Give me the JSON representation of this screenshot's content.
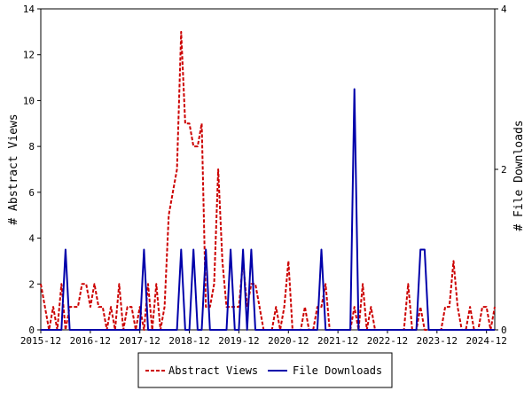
{
  "chart_data": {
    "type": "line",
    "title": "",
    "xlabel": "",
    "ylabel": "# Abstract Views",
    "y2label": "# File Downloads",
    "ylim": [
      0,
      14
    ],
    "y2lim": [
      0,
      4
    ],
    "yticks": [
      0,
      2,
      4,
      6,
      8,
      10,
      12,
      14
    ],
    "y2ticks": [
      0,
      2,
      4
    ],
    "x_range": [
      "2015-12",
      "2025-02"
    ],
    "xticks": [
      "2015-12",
      "2016-12",
      "2017-12",
      "2018-12",
      "2019-12",
      "2020-12",
      "2021-12",
      "2022-12",
      "2023-12",
      "2024-12"
    ],
    "grid": false,
    "legend_position": "bottom",
    "series": [
      {
        "name": "Abstract Views",
        "axis": "left",
        "color": "#cc0000",
        "style": "dashed",
        "x": [
          "2015-12",
          "2016-01",
          "2016-02",
          "2016-03",
          "2016-04",
          "2016-05",
          "2016-06",
          "2016-07",
          "2016-08",
          "2016-09",
          "2016-10",
          "2016-11",
          "2016-12",
          "2017-01",
          "2017-02",
          "2017-03",
          "2017-04",
          "2017-05",
          "2017-06",
          "2017-07",
          "2017-08",
          "2017-09",
          "2017-10",
          "2017-11",
          "2017-12",
          "2018-01",
          "2018-02",
          "2018-03",
          "2018-04",
          "2018-05",
          "2018-06",
          "2018-07",
          "2018-08",
          "2018-09",
          "2018-10",
          "2018-11",
          "2018-12",
          "2019-01",
          "2019-02",
          "2019-03",
          "2019-04",
          "2019-05",
          "2019-06",
          "2019-07",
          "2019-08",
          "2019-09",
          "2019-10",
          "2019-11",
          "2019-12",
          "2020-01",
          "2020-02",
          "2020-03",
          "2020-04",
          "2020-05",
          "2020-06",
          "2020-07",
          "2020-08",
          "2020-09",
          "2020-10",
          "2020-11",
          "2020-12",
          "2021-01",
          "2021-02",
          "2021-03",
          "2021-04",
          "2021-05",
          "2021-06",
          "2021-07",
          "2021-08",
          "2021-09",
          "2021-10",
          "2021-11",
          "2021-12",
          "2022-01",
          "2022-02",
          "2022-03",
          "2022-04",
          "2022-05",
          "2022-06",
          "2022-07",
          "2022-08",
          "2022-09",
          "2022-10",
          "2022-11",
          "2022-12",
          "2023-01",
          "2023-02",
          "2023-03",
          "2023-04",
          "2023-05",
          "2023-06",
          "2023-07",
          "2023-08",
          "2023-09",
          "2023-10",
          "2023-11",
          "2023-12",
          "2024-01",
          "2024-02",
          "2024-03",
          "2024-04",
          "2024-05",
          "2024-06",
          "2024-07",
          "2024-08",
          "2024-09",
          "2024-10",
          "2024-11",
          "2024-12",
          "2025-01",
          "2025-02"
        ],
        "values": [
          2,
          1,
          0,
          1,
          0,
          2,
          0,
          1,
          1,
          1,
          2,
          2,
          1,
          2,
          1,
          1,
          0,
          1,
          0,
          2,
          0,
          1,
          1,
          0,
          1,
          0,
          2,
          0,
          2,
          0,
          1,
          5,
          6,
          7,
          13,
          9,
          9,
          8,
          8,
          9,
          1,
          1,
          2,
          7,
          3,
          1,
          1,
          1,
          1,
          3,
          1,
          2,
          2,
          1,
          0,
          0,
          0,
          1,
          0,
          1,
          3,
          0,
          0,
          0,
          1,
          0,
          0,
          1,
          1,
          2,
          0,
          0,
          0,
          0,
          0,
          0,
          1,
          0,
          2,
          0,
          1,
          0,
          0,
          0,
          0,
          0,
          0,
          0,
          0,
          2,
          0,
          0,
          1,
          0,
          0,
          0,
          0,
          0,
          1,
          1,
          3,
          1,
          0,
          0,
          1,
          0,
          0,
          1,
          1,
          0,
          1
        ]
      },
      {
        "name": "File Downloads",
        "axis": "right",
        "color": "#0000aa",
        "style": "solid",
        "x": [
          "2015-12",
          "2016-01",
          "2016-02",
          "2016-03",
          "2016-04",
          "2016-05",
          "2016-06",
          "2016-07",
          "2016-08",
          "2016-09",
          "2016-10",
          "2016-11",
          "2016-12",
          "2017-01",
          "2017-02",
          "2017-03",
          "2017-04",
          "2017-05",
          "2017-06",
          "2017-07",
          "2017-08",
          "2017-09",
          "2017-10",
          "2017-11",
          "2017-12",
          "2018-01",
          "2018-02",
          "2018-03",
          "2018-04",
          "2018-05",
          "2018-06",
          "2018-07",
          "2018-08",
          "2018-09",
          "2018-10",
          "2018-11",
          "2018-12",
          "2019-01",
          "2019-02",
          "2019-03",
          "2019-04",
          "2019-05",
          "2019-06",
          "2019-07",
          "2019-08",
          "2019-09",
          "2019-10",
          "2019-11",
          "2019-12",
          "2020-01",
          "2020-02",
          "2020-03",
          "2020-04",
          "2020-05",
          "2020-06",
          "2020-07",
          "2020-08",
          "2020-09",
          "2020-10",
          "2020-11",
          "2020-12",
          "2021-01",
          "2021-02",
          "2021-03",
          "2021-04",
          "2021-05",
          "2021-06",
          "2021-07",
          "2021-08",
          "2021-09",
          "2021-10",
          "2021-11",
          "2021-12",
          "2022-01",
          "2022-02",
          "2022-03",
          "2022-04",
          "2022-05",
          "2022-06",
          "2022-07",
          "2022-08",
          "2022-09",
          "2022-10",
          "2022-11",
          "2022-12",
          "2023-01",
          "2023-02",
          "2023-03",
          "2023-04",
          "2023-05",
          "2023-06",
          "2023-07",
          "2023-08",
          "2023-09",
          "2023-10",
          "2023-11",
          "2023-12",
          "2024-01",
          "2024-02",
          "2024-03",
          "2024-04",
          "2024-05",
          "2024-06",
          "2024-07",
          "2024-08",
          "2024-09",
          "2024-10",
          "2024-11",
          "2024-12",
          "2025-01",
          "2025-02"
        ],
        "values": [
          0,
          0,
          0,
          0,
          0,
          0,
          1,
          0,
          0,
          0,
          0,
          0,
          0,
          0,
          0,
          0,
          0,
          0,
          0,
          0,
          0,
          0,
          0,
          0,
          0,
          1,
          0,
          0,
          0,
          0,
          0,
          0,
          0,
          0,
          1,
          0,
          0,
          1,
          0,
          0,
          1,
          0,
          0,
          0,
          0,
          0,
          1,
          0,
          0,
          1,
          0,
          1,
          0,
          0,
          0,
          0,
          0,
          0,
          0,
          0,
          0,
          0,
          0,
          0,
          0,
          0,
          0,
          0,
          1,
          0,
          0,
          0,
          0,
          0,
          0,
          0,
          3,
          0,
          0,
          0,
          0,
          0,
          0,
          0,
          0,
          0,
          0,
          0,
          0,
          0,
          0,
          0,
          1,
          1,
          0,
          0,
          0,
          0,
          0,
          0,
          0,
          0,
          0,
          0,
          0,
          0,
          0,
          0,
          0,
          0,
          0
        ]
      }
    ]
  }
}
